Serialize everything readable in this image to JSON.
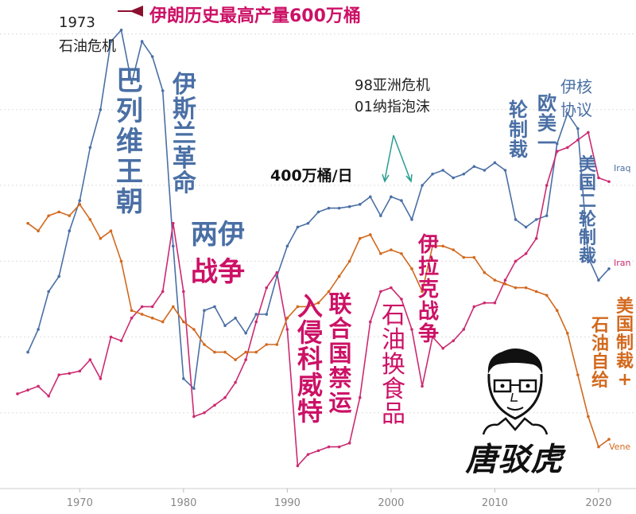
{
  "chart_data": {
    "type": "line",
    "title": "",
    "xlabel": "",
    "ylabel": "",
    "xlim": [
      1964,
      2021
    ],
    "ylim": [
      0,
      6.3
    ],
    "x_ticks": [
      "1970",
      "1980",
      "1990",
      "2000",
      "2010",
      "2020"
    ],
    "grid": "horizontal dotted",
    "series": [
      {
        "name": "Iran",
        "color": "#4a6fa5",
        "points": [
          [
            1965,
            1.8
          ],
          [
            1966,
            2.1
          ],
          [
            1967,
            2.6
          ],
          [
            1968,
            2.8
          ],
          [
            1969,
            3.4
          ],
          [
            1970,
            3.8
          ],
          [
            1971,
            4.5
          ],
          [
            1972,
            5.0
          ],
          [
            1973,
            5.9
          ],
          [
            1974,
            6.05
          ],
          [
            1975,
            5.35
          ],
          [
            1976,
            5.9
          ],
          [
            1977,
            5.7
          ],
          [
            1978,
            5.25
          ],
          [
            1979,
            3.2
          ],
          [
            1980,
            1.45
          ],
          [
            1981,
            1.32
          ],
          [
            1982,
            2.35
          ],
          [
            1983,
            2.4
          ],
          [
            1984,
            2.15
          ],
          [
            1985,
            2.25
          ],
          [
            1986,
            2.05
          ],
          [
            1987,
            2.3
          ],
          [
            1988,
            2.3
          ],
          [
            1989,
            2.8
          ],
          [
            1990,
            3.2
          ],
          [
            1991,
            3.45
          ],
          [
            1992,
            3.5
          ],
          [
            1993,
            3.65
          ],
          [
            1994,
            3.7
          ],
          [
            1995,
            3.7
          ],
          [
            1996,
            3.72
          ],
          [
            1997,
            3.75
          ],
          [
            1998,
            3.85
          ],
          [
            1999,
            3.6
          ],
          [
            2000,
            3.85
          ],
          [
            2001,
            3.8
          ],
          [
            2002,
            3.55
          ],
          [
            2003,
            4.0
          ],
          [
            2004,
            4.15
          ],
          [
            2005,
            4.2
          ],
          [
            2006,
            4.1
          ],
          [
            2007,
            4.15
          ],
          [
            2008,
            4.25
          ],
          [
            2009,
            4.2
          ],
          [
            2010,
            4.3
          ],
          [
            2011,
            4.2
          ],
          [
            2012,
            3.55
          ],
          [
            2013,
            3.45
          ],
          [
            2014,
            3.55
          ],
          [
            2015,
            3.6
          ],
          [
            2016,
            4.55
          ],
          [
            2017,
            4.95
          ],
          [
            2018,
            4.75
          ],
          [
            2019,
            3.05
          ],
          [
            2020,
            2.75
          ],
          [
            2021,
            2.9
          ]
        ]
      },
      {
        "name": "Iraq",
        "color": "#cc2a71",
        "points": [
          [
            1964,
            1.25
          ],
          [
            1965,
            1.3
          ],
          [
            1966,
            1.35
          ],
          [
            1967,
            1.22
          ],
          [
            1968,
            1.5
          ],
          [
            1969,
            1.52
          ],
          [
            1970,
            1.55
          ],
          [
            1971,
            1.7
          ],
          [
            1972,
            1.45
          ],
          [
            1973,
            2.0
          ],
          [
            1974,
            1.95
          ],
          [
            1975,
            2.25
          ],
          [
            1976,
            2.4
          ],
          [
            1977,
            2.4
          ],
          [
            1978,
            2.6
          ],
          [
            1979,
            3.5
          ],
          [
            1980,
            2.6
          ],
          [
            1981,
            0.95
          ],
          [
            1982,
            1.0
          ],
          [
            1983,
            1.1
          ],
          [
            1984,
            1.2
          ],
          [
            1985,
            1.4
          ],
          [
            1986,
            1.7
          ],
          [
            1987,
            2.2
          ],
          [
            1988,
            2.65
          ],
          [
            1989,
            2.85
          ],
          [
            1990,
            2.1
          ],
          [
            1991,
            0.3
          ],
          [
            1992,
            0.45
          ],
          [
            1993,
            0.5
          ],
          [
            1994,
            0.55
          ],
          [
            1995,
            0.55
          ],
          [
            1996,
            0.6
          ],
          [
            1997,
            1.2
          ],
          [
            1998,
            2.2
          ],
          [
            1999,
            2.6
          ],
          [
            2000,
            2.65
          ],
          [
            2001,
            2.5
          ],
          [
            2002,
            2.1
          ],
          [
            2003,
            1.35
          ],
          [
            2004,
            2.0
          ],
          [
            2005,
            1.85
          ],
          [
            2006,
            1.95
          ],
          [
            2007,
            2.1
          ],
          [
            2008,
            2.4
          ],
          [
            2009,
            2.45
          ],
          [
            2010,
            2.45
          ],
          [
            2011,
            2.75
          ],
          [
            2012,
            3.0
          ],
          [
            2013,
            3.1
          ],
          [
            2014,
            3.3
          ],
          [
            2015,
            4.0
          ],
          [
            2016,
            4.45
          ],
          [
            2017,
            4.5
          ],
          [
            2018,
            4.6
          ],
          [
            2019,
            4.7
          ],
          [
            2020,
            4.1
          ],
          [
            2021,
            4.05
          ]
        ]
      },
      {
        "name": "Venezuela",
        "color": "#d2691e",
        "points": [
          [
            1965,
            3.5
          ],
          [
            1966,
            3.4
          ],
          [
            1967,
            3.6
          ],
          [
            1968,
            3.65
          ],
          [
            1969,
            3.6
          ],
          [
            1970,
            3.75
          ],
          [
            1971,
            3.55
          ],
          [
            1972,
            3.3
          ],
          [
            1973,
            3.4
          ],
          [
            1974,
            3.0
          ],
          [
            1975,
            2.35
          ],
          [
            1976,
            2.3
          ],
          [
            1977,
            2.25
          ],
          [
            1978,
            2.2
          ],
          [
            1979,
            2.4
          ],
          [
            1980,
            2.2
          ],
          [
            1981,
            2.1
          ],
          [
            1982,
            1.9
          ],
          [
            1983,
            1.8
          ],
          [
            1984,
            1.8
          ],
          [
            1985,
            1.7
          ],
          [
            1986,
            1.8
          ],
          [
            1987,
            1.8
          ],
          [
            1988,
            1.9
          ],
          [
            1989,
            1.9
          ],
          [
            1990,
            2.25
          ],
          [
            1991,
            2.4
          ],
          [
            1992,
            2.4
          ],
          [
            1993,
            2.45
          ],
          [
            1994,
            2.6
          ],
          [
            1995,
            2.8
          ],
          [
            1996,
            3.0
          ],
          [
            1997,
            3.3
          ],
          [
            1998,
            3.35
          ],
          [
            1999,
            3.1
          ],
          [
            2000,
            3.15
          ],
          [
            2001,
            3.1
          ],
          [
            2002,
            2.9
          ],
          [
            2003,
            2.6
          ],
          [
            2004,
            3.2
          ],
          [
            2005,
            3.2
          ],
          [
            2006,
            3.15
          ],
          [
            2007,
            3.05
          ],
          [
            2008,
            3.05
          ],
          [
            2009,
            2.85
          ],
          [
            2010,
            2.75
          ],
          [
            2011,
            2.7
          ],
          [
            2012,
            2.65
          ],
          [
            2013,
            2.65
          ],
          [
            2014,
            2.6
          ],
          [
            2015,
            2.55
          ],
          [
            2016,
            2.35
          ],
          [
            2017,
            2.05
          ],
          [
            2018,
            1.5
          ],
          [
            2019,
            0.95
          ],
          [
            2020,
            0.55
          ],
          [
            2021,
            0.65
          ]
        ]
      }
    ],
    "annotations": [
      {
        "id": "crisis1973_a",
        "text": "1973",
        "color": "#222222",
        "weight": "normal"
      },
      {
        "id": "crisis1973_b",
        "text": "石油危机",
        "color": "#222222",
        "weight": "normal"
      },
      {
        "id": "peak",
        "text": "伊朗历史最高产量600万桶",
        "color": "#cc1166",
        "weight": "bold"
      },
      {
        "id": "pahlavi",
        "text": "巴列维王朝",
        "color": "#4a6fa5",
        "weight": "bold",
        "vertical": true
      },
      {
        "id": "revolution",
        "text": "伊斯兰革命",
        "color": "#4a6fa5",
        "weight": "bold",
        "vertical": true
      },
      {
        "id": "iranIraqWar_a",
        "text": "两伊",
        "color": "#4a6fa5",
        "weight": "bold"
      },
      {
        "id": "iranIraqWar_b",
        "text": "战争",
        "color": "#cc1166",
        "weight": "bold"
      },
      {
        "id": "level400",
        "text": "400万桶/日",
        "color": "#111111",
        "weight": "bold"
      },
      {
        "id": "asia98",
        "text": "98亚洲危机",
        "color": "#222222",
        "weight": "normal"
      },
      {
        "id": "nasdaq01",
        "text": "01纳指泡沫",
        "color": "#222222",
        "weight": "normal"
      },
      {
        "id": "kuwait",
        "text": "入侵科威特",
        "color": "#cc1166",
        "weight": "bold",
        "vertical": true
      },
      {
        "id": "unEmbargo",
        "text": "联合国禁运",
        "color": "#cc1166",
        "weight": "bold",
        "vertical": true
      },
      {
        "id": "oilForFood",
        "text": "石油换食品",
        "color": "#cc1166",
        "weight": "normal",
        "vertical": true
      },
      {
        "id": "iraqWar",
        "text": "伊拉克战争",
        "color": "#cc1166",
        "weight": "bold",
        "vertical": true
      },
      {
        "id": "euSanctions",
        "text": "欧美一",
        "color": "#4a6fa5",
        "weight": "bold",
        "vertical": true
      },
      {
        "id": "sanctionRound",
        "text": "轮制裁",
        "color": "#4a6fa5",
        "weight": "bold",
        "vertical": true
      },
      {
        "id": "nuclearDeal_a",
        "text": "伊核",
        "color": "#4a6fa5",
        "weight": "normal"
      },
      {
        "id": "nuclearDeal_b",
        "text": "协议",
        "color": "#4a6fa5",
        "weight": "normal"
      },
      {
        "id": "usSanctions2",
        "text": "美国二轮制裁",
        "color": "#4a6fa5",
        "weight": "bold",
        "vertical": true
      },
      {
        "id": "selfSufficient",
        "text": "石油自给",
        "color": "#d2691e",
        "weight": "bold",
        "vertical": true
      },
      {
        "id": "usSanctionsPlus",
        "text": "美国制裁+",
        "color": "#d2691e",
        "weight": "bold",
        "vertical": true
      }
    ],
    "end_labels": [
      "Iraq",
      "Iran",
      "Vene"
    ],
    "logo_text": "唐驳虎"
  }
}
